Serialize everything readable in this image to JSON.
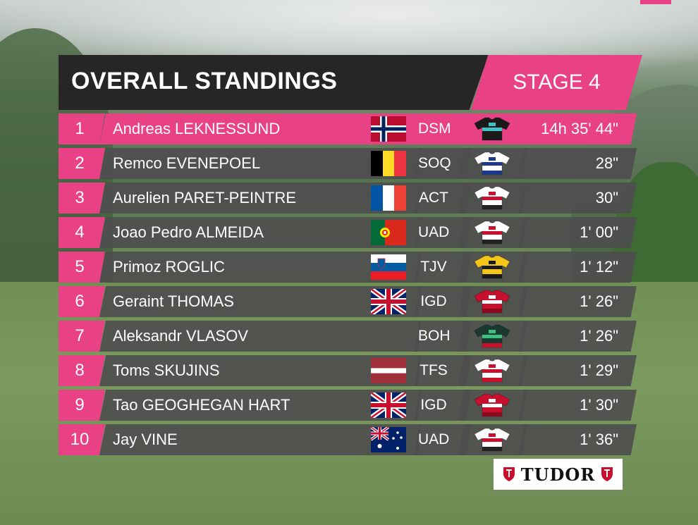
{
  "header": {
    "title": "OVERALL STANDINGS",
    "stage": "STAGE 4"
  },
  "colors": {
    "accent": "#e94186",
    "dark": "#262626",
    "row_bg": "#4e4e4e"
  },
  "standings": [
    {
      "position": "1",
      "name": "Andreas LEKNESSUND",
      "country": "norway",
      "team": "DSM",
      "time": "14h 35' 44\"",
      "jersey": "dsm",
      "leader": true
    },
    {
      "position": "2",
      "name": "Remco EVENEPOEL",
      "country": "belgium",
      "team": "SOQ",
      "time": "28\"",
      "jersey": "soq"
    },
    {
      "position": "3",
      "name": "Aurelien PARET-PEINTRE",
      "country": "france",
      "team": "ACT",
      "time": "30\"",
      "jersey": "act"
    },
    {
      "position": "4",
      "name": "Joao Pedro ALMEIDA",
      "country": "portugal",
      "team": "UAD",
      "time": "1' 00\"",
      "jersey": "uad"
    },
    {
      "position": "5",
      "name": "Primoz ROGLIC",
      "country": "slovenia",
      "team": "TJV",
      "time": "1' 12\"",
      "jersey": "tjv"
    },
    {
      "position": "6",
      "name": "Geraint THOMAS",
      "country": "uk",
      "team": "IGD",
      "time": "1' 26\"",
      "jersey": "igd"
    },
    {
      "position": "7",
      "name": "Aleksandr VLASOV",
      "country": "",
      "team": "BOH",
      "time": "1' 26\"",
      "jersey": "boh"
    },
    {
      "position": "8",
      "name": "Toms SKUJINS",
      "country": "latvia",
      "team": "TFS",
      "time": "1' 29\"",
      "jersey": "tfs"
    },
    {
      "position": "9",
      "name": "Tao GEOGHEGAN HART",
      "country": "uk",
      "team": "IGD",
      "time": "1' 30\"",
      "jersey": "igd"
    },
    {
      "position": "10",
      "name": "Jay VINE",
      "country": "australia",
      "team": "UAD",
      "time": "1' 36\"",
      "jersey": "uad"
    }
  ],
  "sponsor": {
    "name": "TUDOR",
    "icon": "tudor-shield-icon"
  }
}
